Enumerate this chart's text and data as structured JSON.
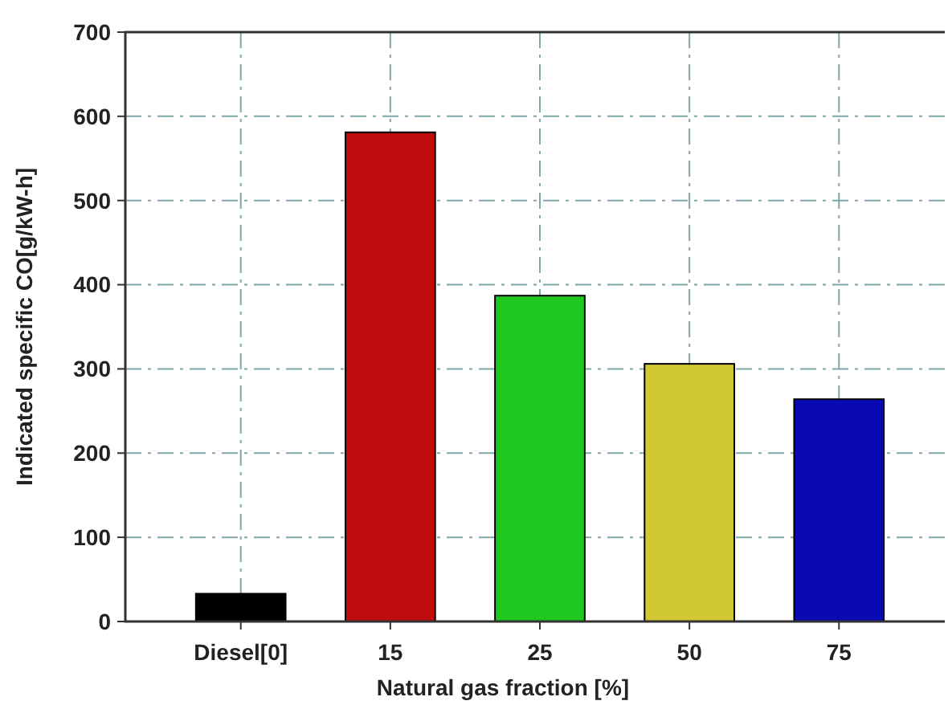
{
  "chart_data": {
    "type": "bar",
    "xlabel": "Natural gas fraction [%]",
    "ylabel": "Indicated specific CO[g/kW-h]",
    "categories": [
      "Diesel[0]",
      "15",
      "25",
      "50",
      "75"
    ],
    "values": [
      33,
      581,
      387,
      306,
      264
    ],
    "colors": [
      "#000000",
      "#c00c0c",
      "#1ec81e",
      "#d2c832",
      "#0a0ab4"
    ],
    "ylim": [
      0,
      700
    ],
    "yticks": [
      0,
      100,
      200,
      300,
      400,
      500,
      600,
      700
    ],
    "grid": true
  }
}
